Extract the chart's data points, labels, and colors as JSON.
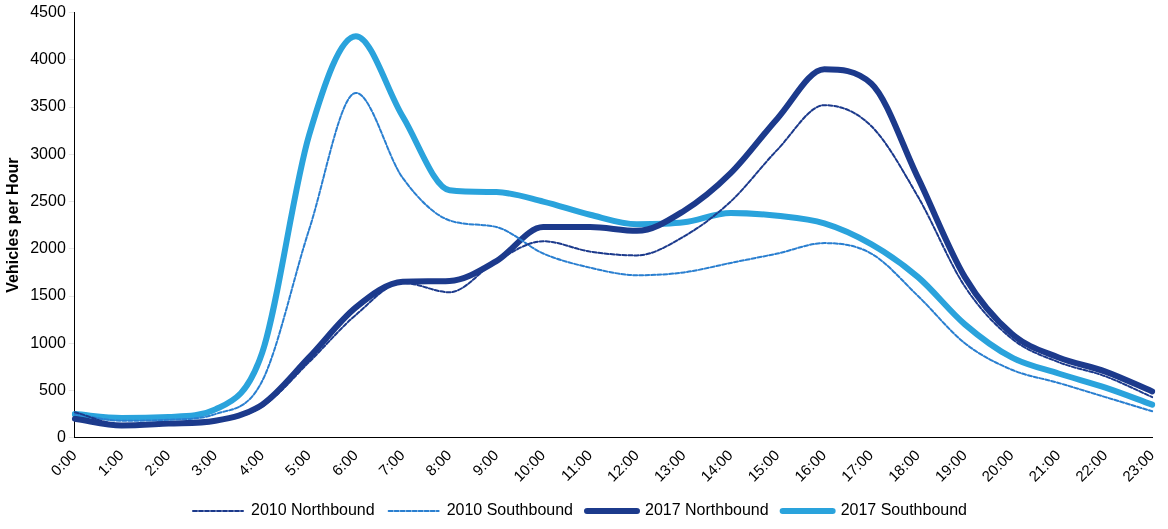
{
  "chart_data": {
    "type": "line",
    "ylabel": "Vehicles per Hour",
    "categories": [
      "0:00",
      "1:00",
      "2:00",
      "3:00",
      "4:00",
      "5:00",
      "6:00",
      "7:00",
      "8:00",
      "9:00",
      "10:00",
      "11:00",
      "12:00",
      "13:00",
      "14:00",
      "15:00",
      "16:00",
      "17:00",
      "18:00",
      "19:00",
      "20:00",
      "21:00",
      "22:00",
      "23:00"
    ],
    "series": [
      {
        "name": "2017 Northbound",
        "color": "#1c3a8c",
        "line_style": "solid",
        "values": [
          200,
          130,
          150,
          180,
          350,
          850,
          1380,
          1650,
          1660,
          1870,
          2230,
          2230,
          2190,
          2400,
          2800,
          3380,
          3900,
          3750,
          2750,
          1700,
          1100,
          850,
          700,
          490
        ]
      },
      {
        "name": "2017 Southbound",
        "color": "#2aa3dc",
        "line_style": "solid",
        "values": [
          250,
          210,
          220,
          300,
          900,
          3200,
          4250,
          3400,
          2620,
          2600,
          2500,
          2360,
          2260,
          2280,
          2380,
          2350,
          2270,
          2050,
          1700,
          1200,
          850,
          680,
          530,
          350
        ]
      },
      {
        "name": "2010 Northbound",
        "color": "#1c3a8c",
        "line_style": "dashed",
        "values": [
          270,
          140,
          140,
          170,
          330,
          800,
          1300,
          1640,
          1540,
          1870,
          2080,
          1970,
          1930,
          2130,
          2500,
          3050,
          3520,
          3300,
          2550,
          1600,
          1050,
          800,
          650,
          430
        ]
      },
      {
        "name": "2010 Southbound",
        "color": "#2a7fd0",
        "line_style": "dashed",
        "values": [
          250,
          180,
          190,
          250,
          600,
          2200,
          3650,
          2750,
          2300,
          2230,
          1950,
          1800,
          1720,
          1750,
          1850,
          1950,
          2060,
          1950,
          1500,
          1000,
          720,
          580,
          430,
          280
        ]
      }
    ],
    "ylim": [
      0,
      4500
    ],
    "yticks": [
      0,
      500,
      1000,
      1500,
      2000,
      2500,
      3000,
      3500,
      4000,
      4500
    ],
    "grid": false,
    "legend": "bottom",
    "marker": "none"
  }
}
